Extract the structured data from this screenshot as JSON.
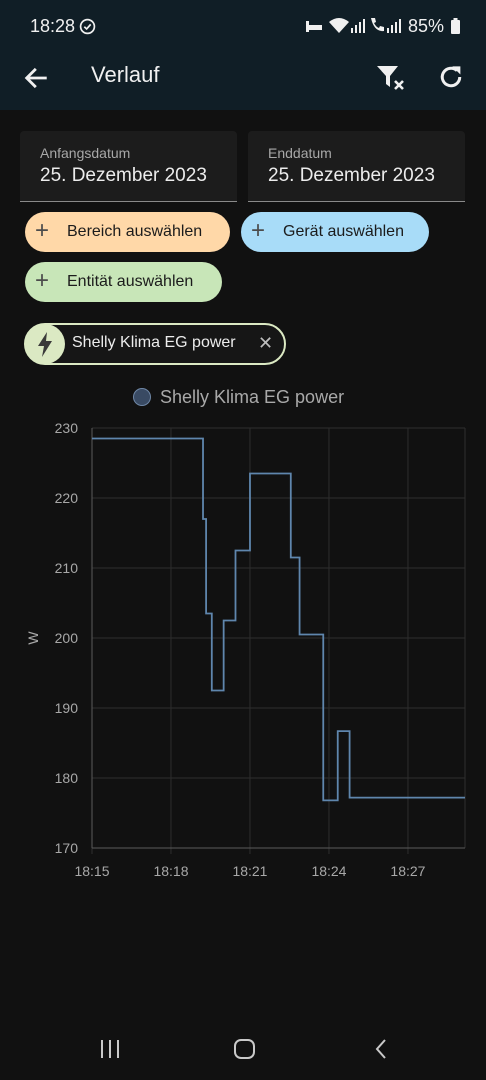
{
  "status_bar": {
    "time": "18:28",
    "battery": "85%",
    "icons": [
      "check-circle-icon",
      "sleep-icon",
      "wifi-icon",
      "signal-icon",
      "wifi-call-icon",
      "battery-icon"
    ]
  },
  "app_bar": {
    "title": "Verlauf",
    "back_icon": "arrow-left-icon",
    "filter_icon": "filter-remove-icon",
    "refresh_icon": "refresh-icon"
  },
  "start_date": {
    "label": "Anfangsdatum",
    "value": "25. Dezember 2023"
  },
  "end_date": {
    "label": "Enddatum",
    "value": "25. Dezember 2023"
  },
  "pickers": [
    {
      "label": "Bereich auswählen",
      "color": "#ffd8a8",
      "icon": "plus-icon"
    },
    {
      "label": "Gerät auswählen",
      "color": "#a8dcf8",
      "icon": "plus-icon"
    },
    {
      "label": "Entität auswählen",
      "color": "#c8e6b8",
      "icon": "plus-icon"
    }
  ],
  "selected_entity": {
    "label": "Shelly Klima EG power",
    "icon": "flash-icon",
    "remove_icon": "close-icon"
  },
  "colors": {
    "background": "#111111",
    "app_bar": "#101e26",
    "series_line": "#5f86ad",
    "chip_entity": "#dbe9c3"
  },
  "chart_data": {
    "type": "line",
    "step": true,
    "ylabel": "W",
    "xlabel": "",
    "legend_position": "top-center",
    "grid": true,
    "ylim": [
      170,
      230
    ],
    "yticks": [
      170,
      180,
      190,
      200,
      210,
      220,
      230
    ],
    "xlim": [
      "18:15:00",
      "18:29:10"
    ],
    "xticks": [
      "18:15",
      "18:18",
      "18:21",
      "18:24",
      "18:27"
    ],
    "series": [
      {
        "name": "Shelly Klima EG power",
        "color": "#5f86ad",
        "points": [
          [
            "18:15:00",
            228.5
          ],
          [
            "18:19:13",
            217
          ],
          [
            "18:19:20",
            203.5
          ],
          [
            "18:19:33",
            192.5
          ],
          [
            "18:20:00",
            202.5
          ],
          [
            "18:20:27",
            212.5
          ],
          [
            "18:21:00",
            223.5
          ],
          [
            "18:22:33",
            211.5
          ],
          [
            "18:22:53",
            200.5
          ],
          [
            "18:23:47",
            176.8
          ],
          [
            "18:24:20",
            186.7
          ],
          [
            "18:24:47",
            177.2
          ],
          [
            "18:29:10",
            177.2
          ]
        ]
      }
    ]
  },
  "nav_bar": {
    "icons": [
      "recent-apps-icon",
      "home-icon",
      "back-icon"
    ]
  }
}
